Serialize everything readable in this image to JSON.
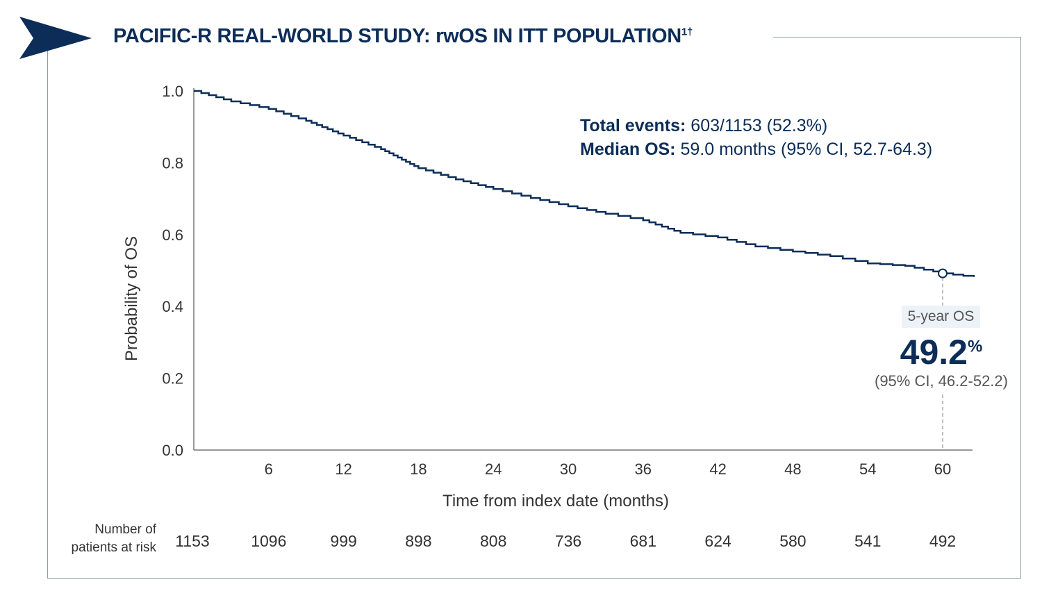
{
  "title": "PACIFIC-R REAL-WORLD STUDY: rwOS IN ITT POPULATION",
  "title_superscript": "1†",
  "colors": {
    "primary": "#0c2d57",
    "frame": "#8a9bb0",
    "label_bg": "#edf2f8"
  },
  "stats": {
    "events_label": "Total events:",
    "events_value": "603/1153 (52.3%)",
    "median_label": "Median OS:",
    "median_value": "59.0 months (95% CI, 52.7-64.3)"
  },
  "annotation": {
    "label": "5-year OS",
    "value": "49.2",
    "unit": "%",
    "ci": "(95% CI, 46.2-52.2)"
  },
  "risk_table": {
    "label_line1": "Number of",
    "label_line2": "patients at risk",
    "values": [
      "1153",
      "1096",
      "999",
      "898",
      "808",
      "736",
      "681",
      "624",
      "580",
      "541",
      "492"
    ]
  },
  "chart_data": {
    "type": "line",
    "step": true,
    "xlabel": "Time from index date (months)",
    "ylabel": "Probability of OS",
    "xlim": [
      0,
      62.5
    ],
    "ylim": [
      0,
      1.0
    ],
    "xticks": [
      "6",
      "12",
      "18",
      "24",
      "30",
      "36",
      "42",
      "48",
      "54",
      "60"
    ],
    "yticks": [
      "0.0",
      "0.2",
      "0.4",
      "0.6",
      "0.8",
      "1.0"
    ],
    "grid": false,
    "x": [
      0,
      3,
      6,
      9,
      12,
      15,
      18,
      21,
      24,
      27,
      30,
      33,
      36,
      39,
      42,
      45,
      48,
      51,
      54,
      57,
      60,
      62.5
    ],
    "y": [
      1.0,
      0.971,
      0.95,
      0.917,
      0.876,
      0.838,
      0.785,
      0.754,
      0.727,
      0.702,
      0.679,
      0.658,
      0.64,
      0.605,
      0.592,
      0.567,
      0.553,
      0.54,
      0.52,
      0.513,
      0.492,
      0.482
    ],
    "marker": {
      "x": 60,
      "y": 0.492
    }
  }
}
